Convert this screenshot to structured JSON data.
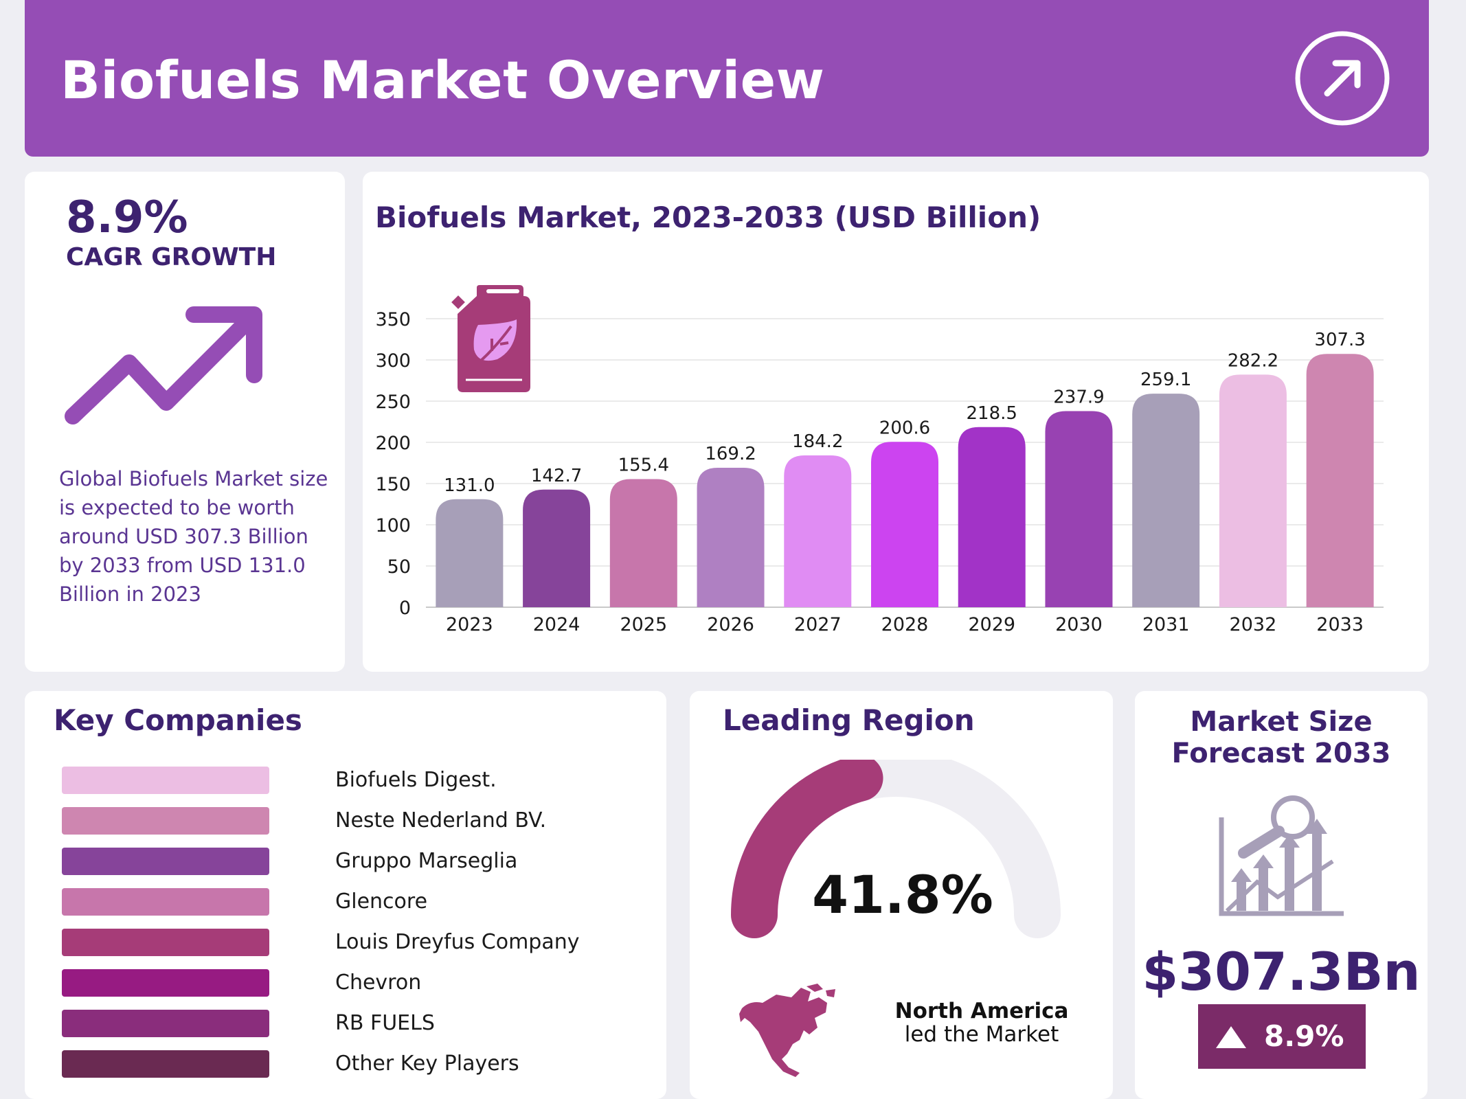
{
  "header": {
    "title": "Biofuels Market Overview",
    "icon": "arrow-up-right-icon"
  },
  "cagr": {
    "value": "8.9%",
    "label": "CAGR GROWTH",
    "description": "Global Biofuels Market size is expected to be worth around USD 307.3 Billion by 2033 from USD 131.0 Billion in 2023",
    "icon": "trend-up-arrow-icon"
  },
  "chart_data": {
    "type": "bar",
    "title": "Biofuels Market, 2023-2033 (USD Billion)",
    "categories": [
      "2023",
      "2024",
      "2025",
      "2026",
      "2027",
      "2028",
      "2029",
      "2030",
      "2031",
      "2032",
      "2033"
    ],
    "values": [
      131.0,
      142.7,
      155.4,
      169.2,
      184.2,
      200.6,
      218.5,
      237.9,
      259.1,
      282.2,
      307.3
    ],
    "value_labels": [
      "131.0",
      "142.7",
      "155.4",
      "169.2",
      "184.2",
      "200.6",
      "218.5",
      "237.9",
      "259.1",
      "282.2",
      "307.3"
    ],
    "colors": [
      "#a79fb8",
      "#86449a",
      "#c776ab",
      "#af80c2",
      "#e08cf3",
      "#cc44f0",
      "#a233c7",
      "#9842b2",
      "#a79fb8",
      "#ecbee3",
      "#ce86b0"
    ],
    "yticks": [
      0,
      50,
      100,
      150,
      200,
      250,
      300,
      350
    ],
    "ylim": [
      0,
      350
    ],
    "xlabel": "",
    "ylabel": "",
    "grid": true,
    "icon": "fuel-can-leaf-icon"
  },
  "companies": {
    "title": "Key Companies",
    "items": [
      {
        "name": "Biofuels Digest.",
        "color": "#ecbee3"
      },
      {
        "name": "Neste Nederland BV.",
        "color": "#ce86b0"
      },
      {
        "name": "Gruppo Marseglia",
        "color": "#86449a"
      },
      {
        "name": "Glencore",
        "color": "#c776ab"
      },
      {
        "name": "Louis Dreyfus Company",
        "color": "#a63c78"
      },
      {
        "name": "Chevron",
        "color": "#971b82"
      },
      {
        "name": "RB FUELS",
        "color": "#8a2d7c"
      },
      {
        "name": "Other Key Players",
        "color": "#6a2a52"
      }
    ]
  },
  "region": {
    "title": "Leading Region",
    "share": 41.8,
    "share_label": "41.8%",
    "name": "North America",
    "subtitle": "led the Market",
    "icon": "north-america-map-icon"
  },
  "market_size": {
    "title_line1": "Market Size",
    "title_line2": "Forecast 2033",
    "value": "$307.3Bn",
    "growth": "8.9%",
    "icon": "growth-analysis-icon"
  }
}
